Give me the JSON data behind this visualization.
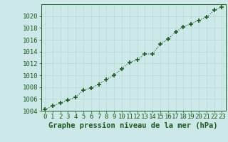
{
  "x": [
    0,
    1,
    2,
    3,
    4,
    5,
    6,
    7,
    8,
    9,
    10,
    11,
    12,
    13,
    14,
    15,
    16,
    17,
    18,
    19,
    20,
    21,
    22,
    23
  ],
  "y": [
    1004.2,
    1004.8,
    1005.3,
    1005.8,
    1006.3,
    1007.5,
    1007.8,
    1008.5,
    1009.3,
    1010.0,
    1011.1,
    1012.2,
    1012.6,
    1013.6,
    1013.6,
    1015.3,
    1016.1,
    1017.3,
    1018.2,
    1018.7,
    1019.3,
    1019.8,
    1021.0,
    1021.5
  ],
  "ylim": [
    1004,
    1022
  ],
  "xlim": [
    -0.5,
    23.5
  ],
  "yticks": [
    1004,
    1006,
    1008,
    1010,
    1012,
    1014,
    1016,
    1018,
    1020
  ],
  "xticks": [
    0,
    1,
    2,
    3,
    4,
    5,
    6,
    7,
    8,
    9,
    10,
    11,
    12,
    13,
    14,
    15,
    16,
    17,
    18,
    19,
    20,
    21,
    22,
    23
  ],
  "line_color": "#1a5c1a",
  "marker": "+",
  "marker_size": 5,
  "marker_ew": 1.2,
  "bg_color": "#cce8e8",
  "grid_color": "#b8d8d8",
  "xlabel": "Graphe pression niveau de la mer (hPa)",
  "xlabel_color": "#1a5c1a",
  "tick_color": "#1a5c1a",
  "label_fontsize": 6.5,
  "xlabel_fontsize": 7.5
}
